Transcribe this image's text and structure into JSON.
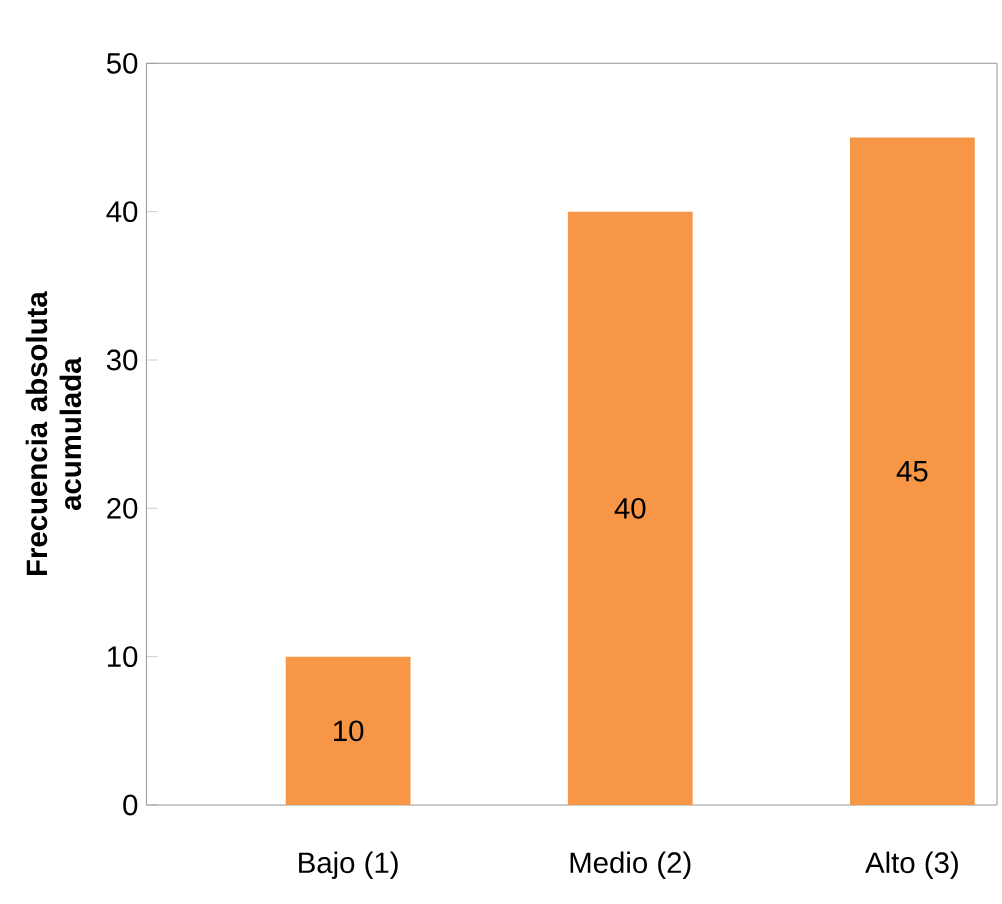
{
  "chart_data": {
    "type": "bar",
    "ylabel": "Frecuencia absoluta acumulada",
    "categories": [
      "Bajo (1)",
      "Medio (2)",
      "Alto (3)"
    ],
    "values": [
      10,
      40,
      45
    ],
    "color": "#f79646",
    "ylim": [
      0,
      50
    ],
    "yticks": [
      0,
      10,
      20,
      30,
      40,
      50
    ],
    "data_labels": true,
    "grid": false
  }
}
